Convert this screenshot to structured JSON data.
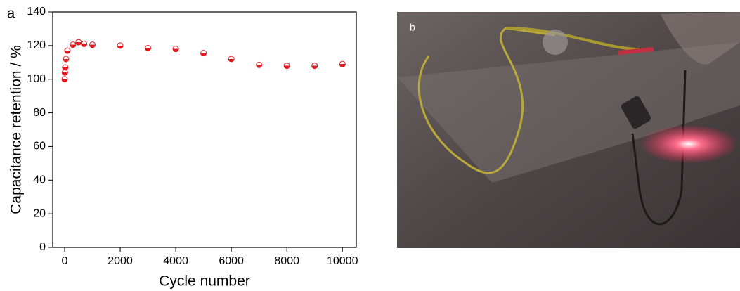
{
  "panel_labels": [
    "a",
    "b"
  ],
  "chart_data": {
    "type": "scatter",
    "x_label": "Cycle number",
    "y_label": "Capacitance retention / %",
    "x": [
      1,
      10,
      20,
      50,
      100,
      300,
      500,
      700,
      1000,
      2000,
      3000,
      4000,
      5000,
      6000,
      7000,
      8000,
      9000,
      10000
    ],
    "values": [
      100,
      104,
      107,
      112,
      117,
      120.5,
      122,
      121,
      120.5,
      120,
      118.5,
      118,
      115.5,
      112,
      108.5,
      108,
      108,
      109
    ],
    "color": "#e0191e",
    "xlim": [
      -430,
      10500
    ],
    "ylim": [
      0,
      140
    ],
    "xticks": [
      0,
      2000,
      4000,
      6000,
      8000,
      10000
    ],
    "yticks": [
      0,
      20,
      40,
      60,
      80,
      100,
      120,
      140
    ]
  }
}
